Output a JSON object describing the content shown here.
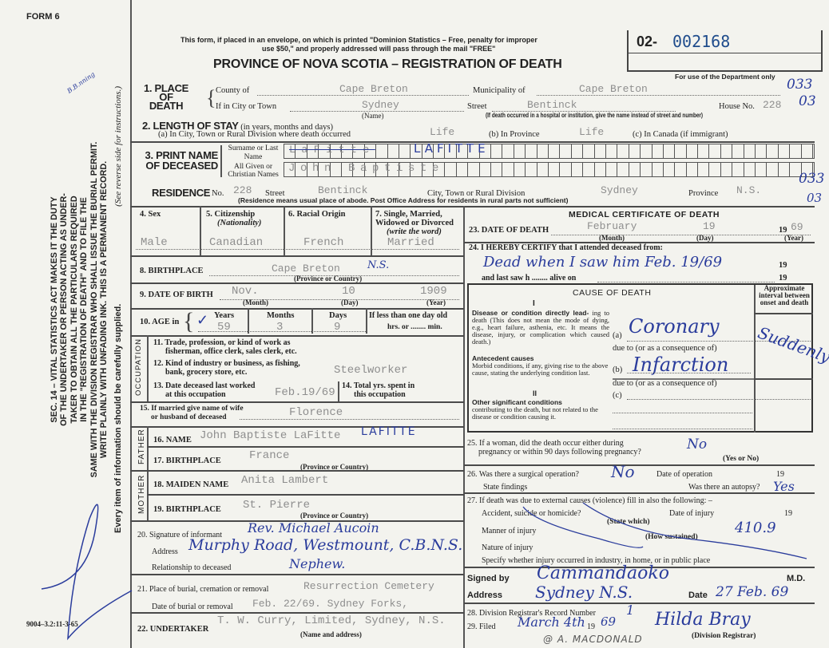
{
  "header": {
    "form_label": "FORM 6",
    "notice_1": "This form, if placed in an envelope, on which is printed \"Dominion Statistics – Free, penalty for improper",
    "notice_2": "use $50,\" and properly addressed will pass through the mail \"FREE\"",
    "title": "PROVINCE OF NOVA SCOTIA – REGISTRATION OF DEATH",
    "reg_prefix": "02-",
    "reg_number": "002168",
    "dept_note": "For use of the Department only"
  },
  "margin": {
    "sec_lines": [
      "SEC. 14 – VITAL STATISTICS ACT MAKES IT THE DUTY",
      "OF THE UNDERTAKER OR PERSON ACTING AS UNDER-",
      "TAKER TO OBTAIN ALL THE PARTICULARS REQUIRED",
      "IN THE \"REGISTRATION OF DEATH\" AND TO FILE THE",
      "SAME WITH THE DIVISION REGISTRAR WHO SHALL ISSUE THE BURIAL PERMIT.",
      "WRITE PLAINLY WITH UNFADING INK. THIS IS A PERMANENT RECORD."
    ],
    "every_item": "Every item of information should be carefully supplied.",
    "see_reverse": "(See reverse side for instructions.)",
    "print_code": "9004–3.2:11-3-65",
    "initials": "B.B.nning"
  },
  "codes": {
    "county": "033",
    "city": "03",
    "residence_county": "033",
    "residence_city": "03"
  },
  "place_of_death": {
    "label": "1. PLACE OF DEATH",
    "county_label": "County of",
    "county": "Cape Breton",
    "municipality_label": "Municipality of",
    "municipality": "Cape Breton",
    "city_label": "If in City or Town",
    "city": "Sydney",
    "name_note": "(Name)",
    "street_label": "Street",
    "street": "Bentinck",
    "house_label": "House No.",
    "house": "228",
    "hospital_note": "(If death occurred in a hospital or institution, give the name instead of street and number)"
  },
  "length_of_stay": {
    "label": "2. LENGTH OF STAY",
    "label_note": "(in years, months and days)",
    "a_label": "(a) In City, Town or Rural Division where death occurred",
    "a": "Life",
    "b_label": "(b) In Province",
    "b": "Life",
    "c_label": "(c) In Canada (if immigrant)"
  },
  "name": {
    "label": "3. PRINT NAME OF DECEASED",
    "surname_label": "Surname or Last Name",
    "surname_struck": "LaFitte",
    "surname": "LAFITTE",
    "given_label": "All Given or Christian Names",
    "given": "John Baptiste"
  },
  "residence": {
    "label": "RESIDENCE",
    "no_label": "No.",
    "no": "228",
    "street_label": "Street",
    "street": "Bentinck",
    "city_label": "City, Town or Rural Division",
    "city": "Sydney",
    "province_label": "Province",
    "province": "N.S.",
    "note": "(Residence means usual place of abode. Post Office Address for residents in rural parts not sufficient)"
  },
  "personal": {
    "sex_label": "4. Sex",
    "sex": "Male",
    "citizenship_label": "5. Citizenship",
    "citizenship_note": "(Nationality)",
    "citizenship": "Canadian",
    "racial_label": "6. Racial Origin",
    "racial": "French",
    "marital_label_1": "7. Single, Married,",
    "marital_label_2": "Widowed or Divorced",
    "marital_note": "(write the word)",
    "marital": "Married",
    "birthplace_label": "8. BIRTHPLACE",
    "birthplace": "Cape Breton",
    "birthplace_hw": "N.S.",
    "prov_note": "(Province or Country)",
    "dob_label": "9. DATE OF BIRTH",
    "dob_month": "Nov.",
    "dob_day": "10",
    "dob_year": "1909",
    "month_note": "(Month)",
    "day_note": "(Day)",
    "year_note": "(Year)",
    "age_label": "10. AGE in",
    "years_label": "Years",
    "years": "59",
    "months_label": "Months",
    "months": "3",
    "days_label": "Days",
    "days": "9",
    "less_label": "If less than one day old",
    "hrs_label": "hrs. or",
    "min_label": "min."
  },
  "occupation": {
    "side_label": "OCCUPATION",
    "q11_1": "11. Trade, profession, or kind of work as",
    "q11_2": "fisherman, office clerk, sales clerk, etc.",
    "q12_1": "12. Kind of industry or business, as fishing,",
    "q12_2": "bank, grocery store, etc.",
    "q12": "Steelworker",
    "q13_1": "13. Date deceased last worked",
    "q13_2": "at this occupation",
    "q13": "Feb.19/69",
    "q14_1": "14. Total yrs. spent in",
    "q14_2": "this occupation"
  },
  "spouse": {
    "label_1": "15. If married give name of wife",
    "label_2": "or husband of deceased",
    "value": "Florence"
  },
  "father": {
    "side_label": "FATHER",
    "name_label": "16. NAME",
    "name": "John Baptiste LaFitte",
    "name_hw": "LAFITTE",
    "birthplace_label": "17. BIRTHPLACE",
    "birthplace": "France"
  },
  "mother": {
    "side_label": "MOTHER",
    "maiden_label": "18. MAIDEN NAME",
    "maiden": "Anita Lambert",
    "birthplace_label": "19. BIRTHPLACE",
    "birthplace": "St. Pierre"
  },
  "informant": {
    "sig_label": "20. Signature of informant",
    "sig": "Rev. Michael Aucoin",
    "address_label": "Address",
    "address": "Murphy Road, Westmount, C.B.N.S.",
    "rel_label": "Relationship to deceased",
    "rel": "Nephew."
  },
  "burial": {
    "place_label": "21. Place of burial, cremation or removal",
    "place": "Resurrection Cemetery",
    "date_label": "Date of burial or removal",
    "date": "Feb. 22/69. Sydney Forks,"
  },
  "undertaker": {
    "label": "22. UNDERTAKER",
    "value": "T. W. Curry, Limited, Sydney, N.S.",
    "note": "(Name and address)"
  },
  "medical": {
    "heading": "MEDICAL CERTIFICATE OF DEATH",
    "dod_label": "23. DATE OF DEATH",
    "dod_month": "February",
    "dod_day": "19",
    "dod_century": "19",
    "dod_year": "69",
    "certify_label": "24. I HEREBY CERTIFY that I attended deceased from:",
    "certify": "Dead when I saw him Feb. 19/69",
    "y19": "19",
    "last_saw": "and last saw h ........ alive on",
    "cause_heading": "CAUSE OF DEATH",
    "interval_heading": "Approximate interval between onset and death",
    "part1": "I",
    "direct_bold": "Disease or condition directly lead-",
    "direct_text": "ing to death (This does not mean the mode of dying, e.g., heart failure, asthenia, etc. It means the disease, injury, or complication which caused death.)",
    "a_label": "(a)",
    "due_to": "due to (or as a consequence of)",
    "cause_a1": "Coronary",
    "cause_a2": "Infarction",
    "interval_a": "Suddenly",
    "antecedent_bold": "Antecedent causes",
    "antecedent_text": "Morbid conditions, if any, giving rise to the above cause, stating the underlying condition last.",
    "b_label": "(b)",
    "c_label": "(c)",
    "part2": "II",
    "other_bold": "Other significant conditions",
    "other_text": "contributing to the death, but not related to the disease or condition causing it.",
    "q25_1": "25. If a woman, did the death occur either during",
    "q25_2": "pregnancy or within 90 days following pregnancy?",
    "q25": "No",
    "yes_no": "(Yes or No)",
    "q26_label": "26. Was there a surgical operation?",
    "q26": "No",
    "op_date_label": "Date of operation",
    "op_19": "19",
    "findings_label": "State findings",
    "autopsy_label": "Was there an autopsy?",
    "autopsy": "Yes",
    "q27_label": "27. If death was due to external causes (violence) fill in also the following: –",
    "accident_label": "Accident, suicide or homicide?",
    "state_which": "(State which)",
    "injury_date_label": "Date of injury",
    "inj_19": "19",
    "manner_label": "Manner of injury",
    "how_note": "(How sustained)",
    "code": "410.9",
    "nature_label": "Nature of injury",
    "specify_label": "Specify whether injury occurred in industry, in home, or in public place",
    "signed_label": "Signed by",
    "signed": "Cammandaoko",
    "md": "M.D.",
    "address_label": "Address",
    "address": "Sydney N.S.",
    "date_label": "Date",
    "date": "27 Feb. 69",
    "q28_label": "28. Division Registrar's Record Number",
    "q28": "1",
    "q29_label": "29. Filed",
    "q29": "March 4th",
    "q29_19": "19",
    "q29_year": "69",
    "registrar": "Hilda Bray",
    "registrar_note": "(Division Registrar)",
    "stamp": "@ A. MACDONALD"
  }
}
